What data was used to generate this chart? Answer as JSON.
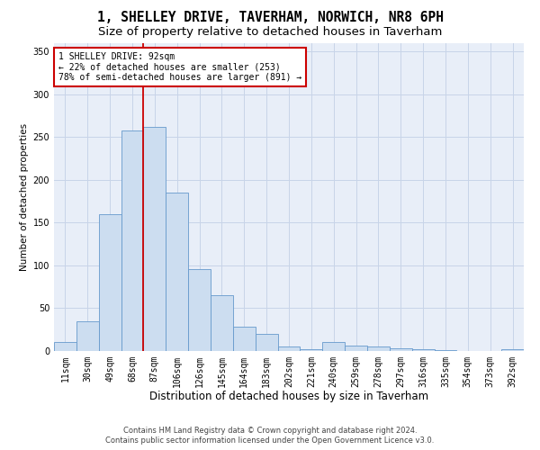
{
  "title": "1, SHELLEY DRIVE, TAVERHAM, NORWICH, NR8 6PH",
  "subtitle": "Size of property relative to detached houses in Taverham",
  "xlabel": "Distribution of detached houses by size in Taverham",
  "ylabel": "Number of detached properties",
  "bar_labels": [
    "11sqm",
    "30sqm",
    "49sqm",
    "68sqm",
    "87sqm",
    "106sqm",
    "126sqm",
    "145sqm",
    "164sqm",
    "183sqm",
    "202sqm",
    "221sqm",
    "240sqm",
    "259sqm",
    "278sqm",
    "297sqm",
    "316sqm",
    "335sqm",
    "354sqm",
    "373sqm",
    "392sqm"
  ],
  "bar_heights": [
    10,
    35,
    160,
    258,
    262,
    185,
    96,
    65,
    28,
    20,
    5,
    2,
    10,
    6,
    5,
    3,
    2,
    1,
    0,
    0,
    2
  ],
  "bar_color": "#ccddf0",
  "bar_edge_color": "#6699cc",
  "vline_color": "#cc0000",
  "annotation_text": "1 SHELLEY DRIVE: 92sqm\n← 22% of detached houses are smaller (253)\n78% of semi-detached houses are larger (891) →",
  "annotation_box_color": "#ffffff",
  "annotation_box_edge": "#cc0000",
  "ylim": [
    0,
    360
  ],
  "yticks": [
    0,
    50,
    100,
    150,
    200,
    250,
    300,
    350
  ],
  "grid_color": "#c8d4e8",
  "plot_bg_color": "#e8eef8",
  "fig_bg_color": "#ffffff",
  "footer_line1": "Contains HM Land Registry data © Crown copyright and database right 2024.",
  "footer_line2": "Contains public sector information licensed under the Open Government Licence v3.0.",
  "title_fontsize": 10.5,
  "subtitle_fontsize": 9.5,
  "xlabel_fontsize": 8.5,
  "ylabel_fontsize": 7.5,
  "tick_fontsize": 7,
  "annot_fontsize": 7,
  "footer_fontsize": 6
}
